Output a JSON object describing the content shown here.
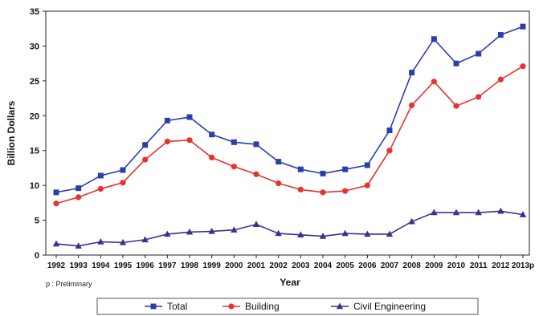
{
  "chart_data": {
    "type": "line",
    "title": "",
    "xlabel": "Year",
    "ylabel": "Billion Dollars",
    "note": "p : Preliminary",
    "ylim": [
      0,
      35
    ],
    "yticks": [
      0,
      5,
      10,
      15,
      20,
      25,
      30,
      35
    ],
    "grid": false,
    "legend_position": "bottom",
    "categories": [
      "1992",
      "1993",
      "1994",
      "1995",
      "1996",
      "1997",
      "1998",
      "1999",
      "2000",
      "2001",
      "2002",
      "2003",
      "2004",
      "2005",
      "2006",
      "2007",
      "2008",
      "2009",
      "2010",
      "2011",
      "2012",
      "2013p"
    ],
    "series": [
      {
        "name": "Total",
        "color": "#2b3fa8",
        "marker": "square",
        "values": [
          9.0,
          9.6,
          11.4,
          12.2,
          15.8,
          19.3,
          19.8,
          17.3,
          16.2,
          15.9,
          13.4,
          12.3,
          11.7,
          12.3,
          12.9,
          17.9,
          26.2,
          31.0,
          27.5,
          28.9,
          31.6,
          32.8
        ]
      },
      {
        "name": "Building",
        "color": "#e8322d",
        "marker": "circle",
        "values": [
          7.4,
          8.3,
          9.5,
          10.4,
          13.7,
          16.3,
          16.5,
          14.0,
          12.7,
          11.6,
          10.3,
          9.4,
          9.0,
          9.2,
          10.0,
          15.0,
          21.5,
          24.9,
          21.4,
          22.7,
          25.2,
          27.1
        ]
      },
      {
        "name": "Civil Engineering",
        "color": "#3b2f8f",
        "marker": "triangle",
        "values": [
          1.6,
          1.3,
          1.9,
          1.8,
          2.2,
          3.0,
          3.3,
          3.4,
          3.6,
          4.4,
          3.1,
          2.9,
          2.7,
          3.1,
          3.0,
          3.0,
          4.8,
          6.1,
          6.1,
          6.1,
          6.3,
          5.8
        ]
      }
    ]
  }
}
